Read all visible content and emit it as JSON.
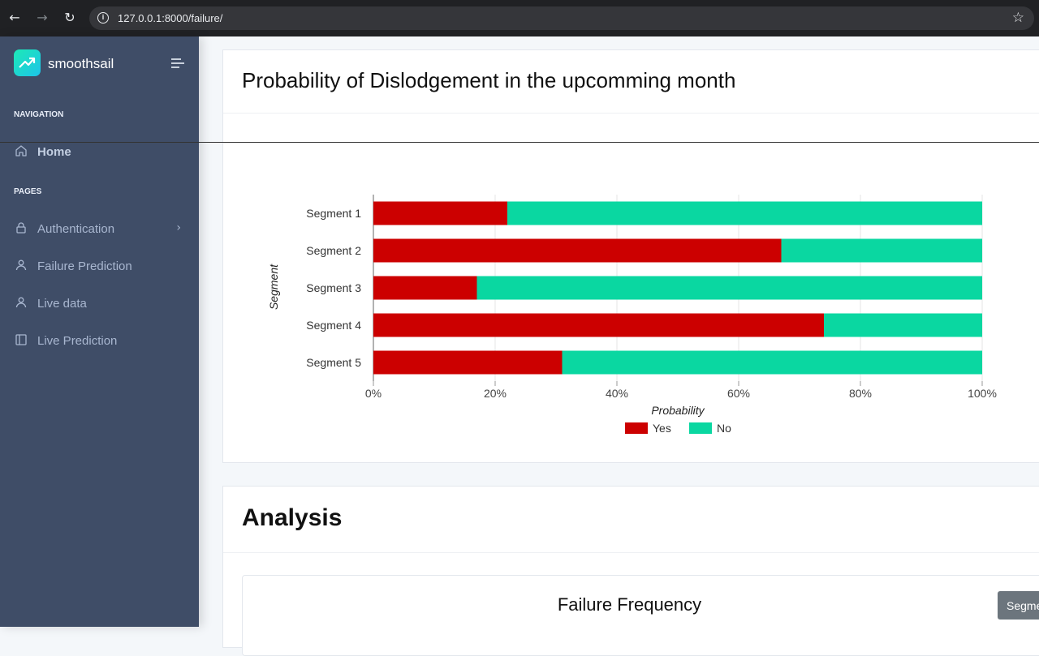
{
  "browser": {
    "url": "127.0.0.1:8000/failure/"
  },
  "sidebar": {
    "brand": "smoothsail",
    "caption_navigation": "NAVIGATION",
    "caption_pages": "PAGES",
    "home_label": "Home",
    "items": [
      {
        "label": "Authentication",
        "icon": "lock-icon"
      },
      {
        "label": "Failure Prediction",
        "icon": "user-icon"
      },
      {
        "label": "Live data",
        "icon": "user-icon"
      },
      {
        "label": "Live Prediction",
        "icon": "sidebar-panel-icon"
      }
    ]
  },
  "main": {
    "card1_title": "Probability of Dislodgement in the upcomming month",
    "card2_title": "Analysis",
    "subcard_title": "Failure Frequency",
    "tooltip_text": "Segme"
  },
  "colors": {
    "yes": "#cc0000",
    "no": "#0ad7a1",
    "sidebar_bg": "#3f4d67"
  },
  "chart_data": {
    "type": "bar",
    "orientation": "horizontal",
    "stacked": true,
    "categories": [
      "Segment 1",
      "Segment 2",
      "Segment 3",
      "Segment 4",
      "Segment 5"
    ],
    "series": [
      {
        "name": "Yes",
        "values": [
          22,
          67,
          17,
          74,
          31
        ]
      },
      {
        "name": "No",
        "values": [
          78,
          33,
          83,
          26,
          69
        ]
      }
    ],
    "xlabel": "Probability",
    "ylabel": "Segment",
    "xlim": [
      0,
      100
    ],
    "xticks": [
      "0%",
      "20%",
      "40%",
      "60%",
      "80%",
      "100%"
    ],
    "grid": true,
    "legend": "bottom"
  }
}
